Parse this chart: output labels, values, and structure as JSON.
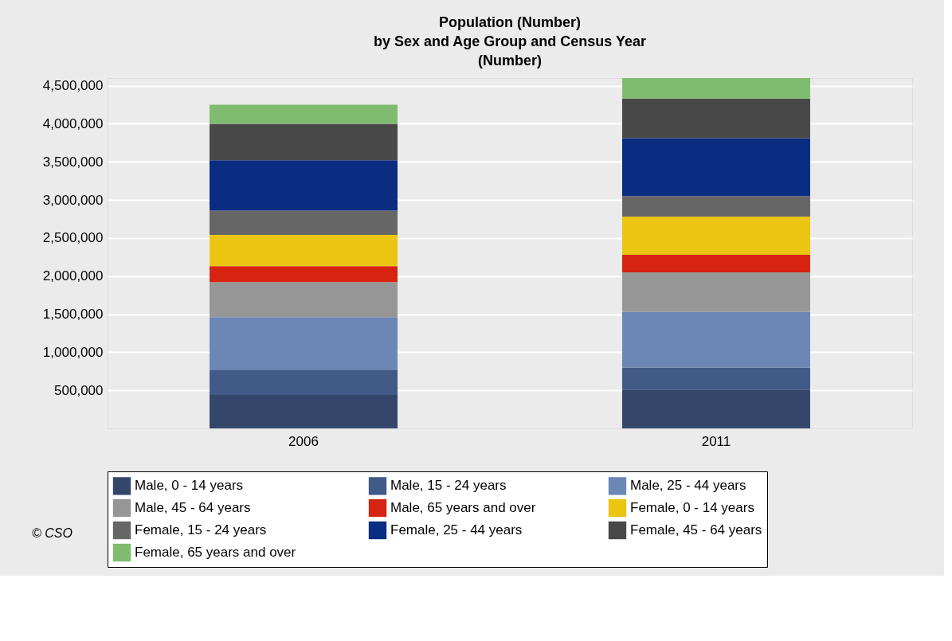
{
  "chart_data": {
    "type": "bar",
    "title": [
      "Population (Number)",
      "by Sex and Age Group and Census Year",
      "(Number)"
    ],
    "categories": [
      "2006",
      "2011"
    ],
    "stacked": true,
    "series": [
      {
        "name": "Male, 0 - 14 years",
        "color": "#34476b",
        "values": [
          440000,
          510000
        ]
      },
      {
        "name": "Male, 15 - 24 years",
        "color": "#415a88",
        "values": [
          330000,
          290000
        ]
      },
      {
        "name": "Male, 25 - 44 years",
        "color": "#6c87b6",
        "values": [
          690000,
          730000
        ]
      },
      {
        "name": "Male, 45 - 64 years",
        "color": "#969696",
        "values": [
          460000,
          520000
        ]
      },
      {
        "name": "Male, 65 years and over",
        "color": "#d62410",
        "values": [
          210000,
          230000
        ]
      },
      {
        "name": "Female, 0 - 14 years",
        "color": "#ecc412",
        "values": [
          410000,
          500000
        ]
      },
      {
        "name": "Female, 15 - 24 years",
        "color": "#666666",
        "values": [
          320000,
          270000
        ]
      },
      {
        "name": "Female, 25 - 44 years",
        "color": "#0a2d82",
        "values": [
          660000,
          760000
        ]
      },
      {
        "name": "Female, 45 - 64 years",
        "color": "#484848",
        "values": [
          480000,
          520000
        ]
      },
      {
        "name": "Female, 65 years and over",
        "color": "#80bc70",
        "values": [
          250000,
          270000
        ]
      }
    ],
    "ylim": [
      0,
      4600000
    ],
    "yticks": [
      {
        "value": 500000,
        "label": "500,000"
      },
      {
        "value": 1000000,
        "label": "1,000,000"
      },
      {
        "value": 1500000,
        "label": "1,500,000"
      },
      {
        "value": 2000000,
        "label": "2,000,000"
      },
      {
        "value": 2500000,
        "label": "2,500,000"
      },
      {
        "value": 3000000,
        "label": "3,000,000"
      },
      {
        "value": 3500000,
        "label": "3,500,000"
      },
      {
        "value": 4000000,
        "label": "4,000,000"
      },
      {
        "value": 4500000,
        "label": "4,500,000"
      }
    ],
    "grid": "y",
    "legend": "bottom",
    "annotations": [
      "© CSO"
    ]
  }
}
